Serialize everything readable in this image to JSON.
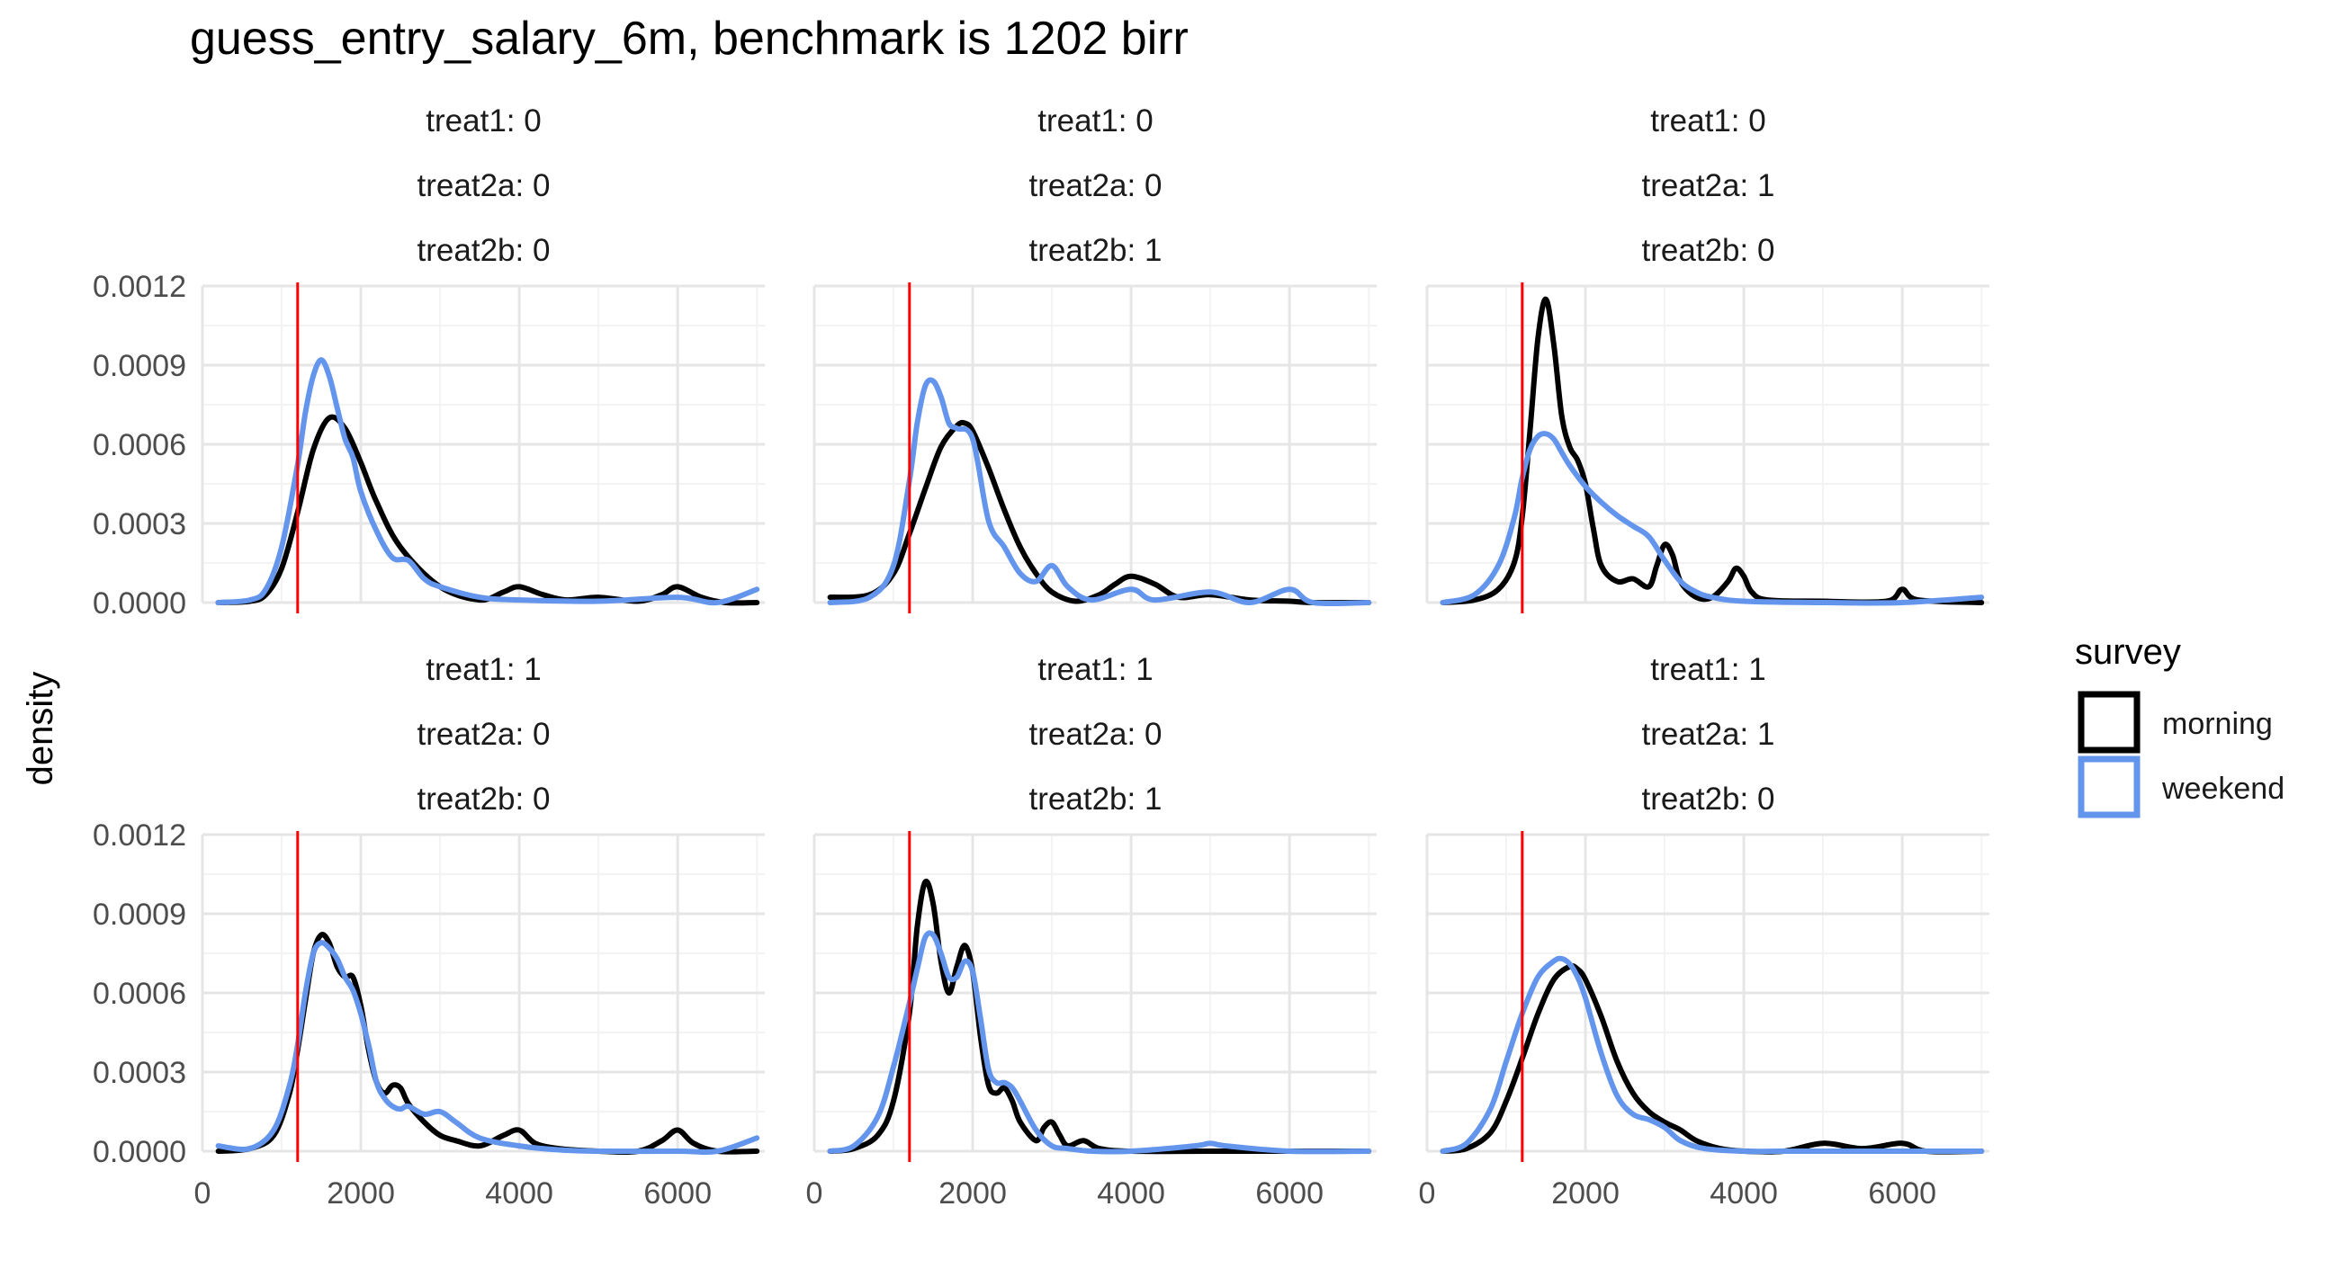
{
  "chart_data": {
    "type": "line",
    "title": "guess_entry_salary_6m, benchmark is 1202 birr",
    "xlabel": "",
    "ylabel": "density",
    "xlim": [
      0,
      7100
    ],
    "ylim": [
      0,
      0.0012
    ],
    "x_ticks": [
      0,
      2000,
      4000,
      6000
    ],
    "x_tick_labels": [
      "0",
      "2000",
      "4000",
      "6000"
    ],
    "y_ticks": [
      0,
      0.0003,
      0.0006,
      0.0009,
      0.0012
    ],
    "y_tick_labels": [
      "0.0000",
      "0.0003",
      "0.0006",
      "0.0009",
      "0.0012"
    ],
    "grid": true,
    "benchmark": {
      "value": 1202,
      "color": "#ff0000"
    },
    "legend": {
      "title": "survey",
      "placement": "right",
      "items": [
        {
          "name": "morning",
          "color": "#000000"
        },
        {
          "name": "weekend",
          "color": "#6495ed"
        }
      ]
    },
    "panels": [
      {
        "strip": [
          "treat1: 0",
          "treat2a: 0",
          "treat2b: 0"
        ],
        "series": [
          {
            "name": "morning",
            "x": [
              200,
              600,
              800,
              1000,
              1200,
              1400,
              1600,
              1800,
              2000,
              2200,
              2500,
              3000,
              3500,
              3800,
              4000,
              4300,
              4600,
              5000,
              5500,
              5800,
              6000,
              6300,
              6600,
              7000
            ],
            "y": [
              0.0,
              5e-06,
              3e-05,
              0.00013,
              0.00034,
              0.00058,
              0.0007,
              0.00066,
              0.00053,
              0.00038,
              0.00021,
              6e-05,
              1e-05,
              4e-05,
              6e-05,
              3e-05,
              1e-05,
              2e-05,
              5e-06,
              3e-05,
              6e-05,
              2e-05,
              0.0,
              0.0
            ]
          },
          {
            "name": "weekend",
            "x": [
              200,
              600,
              800,
              1000,
              1200,
              1300,
              1400,
              1500,
              1600,
              1700,
              1800,
              1900,
              2000,
              2200,
              2400,
              2600,
              2800,
              3000,
              3500,
              4000,
              5000,
              6000,
              6500,
              7000
            ],
            "y": [
              0.0,
              1e-05,
              5e-05,
              0.00021,
              0.00052,
              0.00072,
              0.00086,
              0.00092,
              0.00086,
              0.00074,
              0.00062,
              0.00055,
              0.00042,
              0.00027,
              0.00017,
              0.00016,
              9e-05,
              6e-05,
              2e-05,
              1e-05,
              5e-06,
              2e-05,
              0.0,
              5e-05
            ]
          }
        ]
      },
      {
        "strip": [
          "treat1: 0",
          "treat2a: 0",
          "treat2b: 1"
        ],
        "series": [
          {
            "name": "morning",
            "x": [
              200,
              700,
              1000,
              1200,
              1400,
              1600,
              1800,
              1900,
              2000,
              2200,
              2400,
              2600,
              2800,
              3000,
              3300,
              3600,
              3800,
              4000,
              4300,
              4600,
              5000,
              5500,
              6000,
              6300,
              7000
            ],
            "y": [
              2e-05,
              3e-05,
              0.00011,
              0.00026,
              0.00043,
              0.00059,
              0.00067,
              0.00068,
              0.00065,
              0.00051,
              0.00035,
              0.00021,
              0.00011,
              4e-05,
              5e-06,
              3e-05,
              7e-05,
              0.0001,
              7e-05,
              2e-05,
              3e-05,
              1e-05,
              5e-06,
              0.0,
              0.0
            ]
          },
          {
            "name": "weekend",
            "x": [
              200,
              700,
              1000,
              1200,
              1300,
              1400,
              1500,
              1600,
              1700,
              1800,
              2000,
              2200,
              2400,
              2600,
              2800,
              3000,
              3200,
              3500,
              4000,
              4300,
              5000,
              5500,
              6000,
              6300,
              7000
            ],
            "y": [
              0.0,
              2e-05,
              0.00014,
              0.00046,
              0.00068,
              0.00082,
              0.00084,
              0.00078,
              0.00068,
              0.00066,
              0.00062,
              0.00031,
              0.00021,
              0.00011,
              8e-05,
              0.00014,
              6e-05,
              1e-05,
              5e-05,
              1e-05,
              4e-05,
              0.0,
              5e-05,
              0.0,
              0.0
            ]
          }
        ]
      },
      {
        "strip": [
          "treat1: 0",
          "treat2a: 1",
          "treat2b: 0"
        ],
        "series": [
          {
            "name": "morning",
            "x": [
              200,
              600,
              900,
              1100,
              1200,
              1300,
              1400,
              1500,
              1600,
              1700,
              1800,
              1900,
              2000,
              2100,
              2200,
              2400,
              2600,
              2800,
              2900,
              3000,
              3100,
              3200,
              3400,
              3600,
              3800,
              3900,
              4000,
              4100,
              4300,
              5000,
              5800,
              6000,
              6200,
              7000
            ],
            "y": [
              0.0,
              1e-05,
              5e-05,
              0.00015,
              0.00032,
              0.00065,
              0.001,
              0.00115,
              0.00098,
              0.00071,
              0.00059,
              0.00054,
              0.00045,
              0.00028,
              0.00014,
              8e-05,
              9e-05,
              6e-05,
              0.00014,
              0.00022,
              0.00018,
              8e-05,
              2e-05,
              2e-05,
              8e-05,
              0.00013,
              0.0001,
              4e-05,
              1e-05,
              5e-06,
              5e-06,
              5e-05,
              1e-05,
              0.0
            ]
          },
          {
            "name": "weekend",
            "x": [
              200,
              600,
              900,
              1100,
              1200,
              1300,
              1400,
              1500,
              1600,
              1700,
              1800,
              2000,
              2200,
              2400,
              2600,
              2800,
              3000,
              3200,
              3400,
              3600,
              4000,
              5000,
              6000,
              7000
            ],
            "y": [
              0.0,
              3e-05,
              0.00014,
              0.00032,
              0.00047,
              0.00058,
              0.00063,
              0.00064,
              0.00062,
              0.00057,
              0.00052,
              0.00044,
              0.00038,
              0.00033,
              0.00029,
              0.00025,
              0.00016,
              8e-05,
              4e-05,
              2e-05,
              5e-06,
              0.0,
              0.0,
              2e-05
            ]
          }
        ]
      },
      {
        "strip": [
          "treat1: 1",
          "treat2a: 0",
          "treat2b: 0"
        ],
        "series": [
          {
            "name": "morning",
            "x": [
              200,
              600,
              900,
              1100,
              1200,
              1300,
              1400,
              1500,
              1600,
              1700,
              1800,
              1900,
              2000,
              2100,
              2200,
              2300,
              2400,
              2500,
              2600,
              2800,
              3000,
              3200,
              3500,
              3800,
              4000,
              4200,
              4500,
              5000,
              5500,
              5800,
              6000,
              6200,
              6500,
              7000
            ],
            "y": [
              0.0,
              1e-05,
              6e-05,
              0.00022,
              0.00038,
              0.00057,
              0.00075,
              0.00082,
              0.00079,
              0.0007,
              0.00066,
              0.00066,
              0.00055,
              0.00038,
              0.00026,
              0.00022,
              0.00025,
              0.00024,
              0.00018,
              0.00011,
              6e-05,
              4e-05,
              2e-05,
              6e-05,
              8e-05,
              3e-05,
              1e-05,
              0.0,
              0.0,
              4e-05,
              8e-05,
              3e-05,
              0.0,
              0.0
            ]
          },
          {
            "name": "weekend",
            "x": [
              200,
              600,
              900,
              1100,
              1200,
              1300,
              1400,
              1500,
              1600,
              1700,
              1800,
              1900,
              2000,
              2100,
              2200,
              2300,
              2400,
              2500,
              2600,
              2800,
              3000,
              3200,
              3500,
              4000,
              4500,
              5000,
              6000,
              6500,
              7000
            ],
            "y": [
              2e-05,
              1e-05,
              8e-05,
              0.00025,
              0.0004,
              0.0006,
              0.00075,
              0.00079,
              0.00077,
              0.00073,
              0.00066,
              0.00061,
              0.00052,
              0.0004,
              0.00026,
              0.0002,
              0.00017,
              0.00016,
              0.00017,
              0.00014,
              0.00015,
              0.00011,
              5e-05,
              2e-05,
              5e-06,
              0.0,
              0.0,
              0.0,
              5e-05
            ]
          }
        ]
      },
      {
        "strip": [
          "treat1: 1",
          "treat2a: 0",
          "treat2b: 1"
        ],
        "series": [
          {
            "name": "morning",
            "x": [
              200,
              500,
              800,
              1000,
              1200,
              1300,
              1400,
              1500,
              1600,
              1700,
              1800,
              1900,
              2000,
              2100,
              2200,
              2300,
              2400,
              2500,
              2600,
              2800,
              2900,
              3000,
              3100,
              3200,
              3400,
              3600,
              4000,
              5000,
              6000,
              7000
            ],
            "y": [
              0.0,
              1e-05,
              6e-05,
              0.00019,
              0.00052,
              0.00085,
              0.00102,
              0.00094,
              0.00072,
              0.0006,
              0.0007,
              0.00078,
              0.00068,
              0.00043,
              0.00025,
              0.00022,
              0.00024,
              0.00019,
              0.00011,
              4e-05,
              9e-05,
              0.00011,
              6e-05,
              2e-05,
              4e-05,
              1e-05,
              0.0,
              0.0,
              0.0,
              0.0
            ]
          },
          {
            "name": "weekend",
            "x": [
              200,
              500,
              800,
              1000,
              1200,
              1300,
              1400,
              1500,
              1600,
              1700,
              1800,
              1900,
              2000,
              2100,
              2200,
              2300,
              2400,
              2500,
              2600,
              2800,
              3000,
              3200,
              3500,
              4000,
              4800,
              5000,
              5200,
              6000,
              7000
            ],
            "y": [
              0.0,
              2e-05,
              0.00013,
              0.00032,
              0.00056,
              0.00069,
              0.00081,
              0.00082,
              0.00075,
              0.00066,
              0.00066,
              0.00072,
              0.00068,
              0.0005,
              0.00031,
              0.00026,
              0.00026,
              0.00024,
              0.00019,
              8e-05,
              2e-05,
              1e-05,
              0.0,
              0.0,
              2e-05,
              3e-05,
              2e-05,
              0.0,
              0.0
            ]
          }
        ]
      },
      {
        "strip": [
          "treat1: 1",
          "treat2a: 1",
          "treat2b: 0"
        ],
        "series": [
          {
            "name": "morning",
            "x": [
              200,
              500,
              800,
              1000,
              1200,
              1400,
              1600,
              1800,
              1900,
              2000,
              2200,
              2400,
              2600,
              2800,
              3000,
              3200,
              3400,
              3700,
              4000,
              4500,
              5000,
              5500,
              6000,
              6300,
              7000
            ],
            "y": [
              0.0,
              1e-05,
              7e-05,
              0.00019,
              0.00035,
              0.00052,
              0.00065,
              0.0007,
              0.00069,
              0.00065,
              0.00051,
              0.00034,
              0.00022,
              0.00015,
              0.00011,
              8e-05,
              4e-05,
              1e-05,
              0.0,
              0.0,
              3e-05,
              1e-05,
              3e-05,
              0.0,
              0.0
            ]
          },
          {
            "name": "weekend",
            "x": [
              200,
              500,
              800,
              1000,
              1200,
              1400,
              1600,
              1700,
              1800,
              1900,
              2000,
              2200,
              2400,
              2600,
              2800,
              3000,
              3200,
              3500,
              4000,
              4500,
              5000,
              6000,
              7000
            ],
            "y": [
              0.0,
              3e-05,
              0.00016,
              0.00034,
              0.00052,
              0.00066,
              0.00072,
              0.00073,
              0.00071,
              0.00066,
              0.00058,
              0.00037,
              0.00021,
              0.00014,
              0.00012,
              9e-05,
              4e-05,
              1e-05,
              0.0,
              0.0,
              0.0,
              0.0,
              0.0
            ]
          }
        ]
      }
    ]
  }
}
